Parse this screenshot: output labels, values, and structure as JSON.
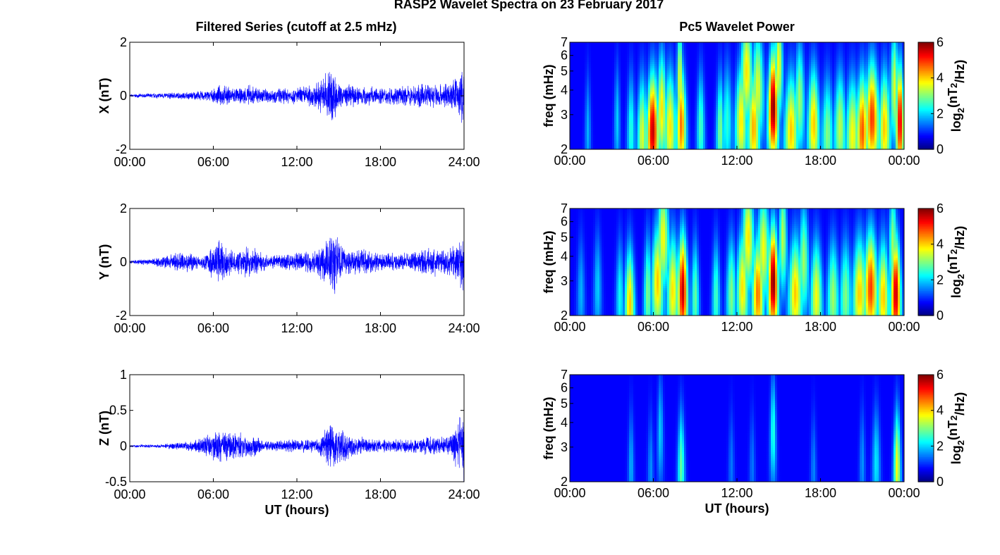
{
  "page": {
    "suptitle": "RASP2 Wavelet Spectra on 23 February 2017",
    "left_title": "Filtered Series (cutoff at 2.5 mHz)",
    "right_title": "Pc5 Wavelet Power"
  },
  "chart_data": [
    {
      "type": "line",
      "title": "Filtered Series (cutoff at 2.5 mHz)",
      "xlabel": "",
      "ylabel": "X (nT)",
      "xlim": [
        0,
        24
      ],
      "ylim": [
        -2,
        2
      ],
      "x_ticks": [
        "00:00",
        "06:00",
        "12:00",
        "18:00",
        "24:00"
      ],
      "y_ticks": [
        "-2",
        "0",
        "2"
      ],
      "color": "#0000ff",
      "series_envelope": {
        "x": [
          0,
          2,
          4,
          6,
          6.5,
          8,
          8.5,
          10,
          12,
          13.5,
          14.5,
          15,
          17,
          18,
          20,
          21,
          23,
          24
        ],
        "amp": [
          0.06,
          0.12,
          0.15,
          0.25,
          0.45,
          0.3,
          0.45,
          0.3,
          0.35,
          0.55,
          1.4,
          0.5,
          0.4,
          0.35,
          0.4,
          0.5,
          0.55,
          1.2
        ]
      }
    },
    {
      "type": "line",
      "xlabel": "",
      "ylabel": "Y (nT)",
      "xlim": [
        0,
        24
      ],
      "ylim": [
        -2,
        2
      ],
      "x_ticks": [
        "00:00",
        "06:00",
        "12:00",
        "18:00",
        "24:00"
      ],
      "y_ticks": [
        "-2",
        "0",
        "2"
      ],
      "color": "#0000ff",
      "series_envelope": {
        "x": [
          0,
          2,
          4.2,
          5,
          6.6,
          7.5,
          8.4,
          10,
          12,
          13.5,
          14.6,
          15.5,
          17,
          18,
          20,
          22,
          23,
          24
        ],
        "amp": [
          0.06,
          0.2,
          0.5,
          0.2,
          1.0,
          0.35,
          0.7,
          0.25,
          0.4,
          0.55,
          1.5,
          0.5,
          0.5,
          0.35,
          0.4,
          0.6,
          0.6,
          1.5
        ]
      }
    },
    {
      "type": "line",
      "xlabel": "UT (hours)",
      "ylabel": "Z (nT)",
      "xlim": [
        0,
        24
      ],
      "ylim": [
        -0.5,
        1
      ],
      "x_ticks": [
        "00:00",
        "06:00",
        "12:00",
        "18:00",
        "24:00"
      ],
      "y_ticks": [
        "-0.5",
        "0",
        "0.5",
        "1"
      ],
      "color": "#0000ff",
      "series_envelope": {
        "x": [
          0,
          2,
          4.5,
          6.5,
          8.3,
          10,
          12,
          13.5,
          14.6,
          16,
          18,
          20,
          22,
          23,
          24
        ],
        "amp": [
          0.02,
          0.03,
          0.08,
          0.25,
          0.2,
          0.08,
          0.1,
          0.12,
          0.4,
          0.15,
          0.1,
          0.1,
          0.15,
          0.15,
          0.6
        ]
      }
    },
    {
      "type": "heatmap",
      "title": "Pc5 Wavelet Power",
      "xlabel": "",
      "ylabel": "freq (mHz)",
      "xlim": [
        0,
        24
      ],
      "ylim": [
        2,
        7
      ],
      "y_scale": "log",
      "x_ticks": [
        "00:00",
        "06:00",
        "12:00",
        "18:00",
        "00:00"
      ],
      "y_ticks": [
        "2",
        "3",
        "4",
        "5",
        "6",
        "7"
      ],
      "colorbar": {
        "label": "log2(nT2/Hz)",
        "range": [
          0,
          6
        ],
        "ticks": [
          "0",
          "2",
          "4",
          "6"
        ],
        "colormap": "jet"
      },
      "blobs": [
        {
          "t": 1.3,
          "f": 2.5,
          "w": 0.15,
          "p": 1.2
        },
        {
          "t": 3.4,
          "f": 2.8,
          "w": 0.15,
          "p": 1.4
        },
        {
          "t": 4.4,
          "f": 2.5,
          "w": 0.2,
          "p": 2.0
        },
        {
          "t": 5.2,
          "f": 2.4,
          "w": 0.25,
          "p": 3.2
        },
        {
          "t": 5.95,
          "f": 2.5,
          "w": 0.3,
          "p": 5.6
        },
        {
          "t": 6.6,
          "f": 3.2,
          "w": 0.25,
          "p": 3.6
        },
        {
          "t": 7.2,
          "f": 2.6,
          "w": 0.3,
          "p": 3.6
        },
        {
          "t": 8.0,
          "f": 2.7,
          "w": 0.25,
          "p": 4.4
        },
        {
          "t": 7.9,
          "f": 4.5,
          "w": 0.15,
          "p": 3.4
        },
        {
          "t": 9.4,
          "f": 2.6,
          "w": 0.2,
          "p": 2.2
        },
        {
          "t": 10.8,
          "f": 2.5,
          "w": 0.2,
          "p": 2.6
        },
        {
          "t": 11.3,
          "f": 2.8,
          "w": 0.25,
          "p": 2.0
        },
        {
          "t": 12.3,
          "f": 2.8,
          "w": 0.3,
          "p": 3.6
        },
        {
          "t": 12.7,
          "f": 5.0,
          "w": 0.3,
          "p": 3.6
        },
        {
          "t": 13.2,
          "f": 2.6,
          "w": 0.3,
          "p": 4.0
        },
        {
          "t": 13.5,
          "f": 4.2,
          "w": 0.3,
          "p": 3.2
        },
        {
          "t": 14.6,
          "f": 3.3,
          "w": 0.25,
          "p": 6.0
        },
        {
          "t": 15.0,
          "f": 5.5,
          "w": 0.2,
          "p": 3.4
        },
        {
          "t": 15.9,
          "f": 2.5,
          "w": 0.35,
          "p": 3.8
        },
        {
          "t": 16.5,
          "f": 3.6,
          "w": 0.25,
          "p": 2.8
        },
        {
          "t": 17.5,
          "f": 2.7,
          "w": 0.3,
          "p": 3.8
        },
        {
          "t": 18.5,
          "f": 2.4,
          "w": 0.3,
          "p": 2.6
        },
        {
          "t": 19.4,
          "f": 2.6,
          "w": 0.3,
          "p": 3.0
        },
        {
          "t": 20.3,
          "f": 2.4,
          "w": 0.35,
          "p": 3.4
        },
        {
          "t": 21.0,
          "f": 2.5,
          "w": 0.3,
          "p": 4.6
        },
        {
          "t": 21.7,
          "f": 2.9,
          "w": 0.35,
          "p": 4.8
        },
        {
          "t": 22.6,
          "f": 2.6,
          "w": 0.3,
          "p": 3.8
        },
        {
          "t": 23.3,
          "f": 4.2,
          "w": 0.2,
          "p": 3.2
        },
        {
          "t": 23.7,
          "f": 2.8,
          "w": 0.2,
          "p": 5.4
        }
      ]
    },
    {
      "type": "heatmap",
      "xlabel": "",
      "ylabel": "freq (mHz)",
      "xlim": [
        0,
        24
      ],
      "ylim": [
        2,
        7
      ],
      "y_scale": "log",
      "x_ticks": [
        "00:00",
        "06:00",
        "12:00",
        "18:00",
        "00:00"
      ],
      "y_ticks": [
        "2",
        "3",
        "4",
        "5",
        "6",
        "7"
      ],
      "colorbar": {
        "label": "log2(nT2/Hz)",
        "range": [
          0,
          6
        ],
        "ticks": [
          "0",
          "2",
          "4",
          "6"
        ],
        "colormap": "jet"
      },
      "blobs": [
        {
          "t": 0.8,
          "f": 2.6,
          "w": 0.2,
          "p": 1.2
        },
        {
          "t": 2.0,
          "f": 2.8,
          "w": 0.2,
          "p": 1.4
        },
        {
          "t": 3.6,
          "f": 2.5,
          "w": 0.2,
          "p": 1.8
        },
        {
          "t": 4.3,
          "f": 2.3,
          "w": 0.25,
          "p": 3.8
        },
        {
          "t": 5.6,
          "f": 2.6,
          "w": 0.2,
          "p": 2.6
        },
        {
          "t": 6.3,
          "f": 3.0,
          "w": 0.3,
          "p": 3.8
        },
        {
          "t": 6.7,
          "f": 5.0,
          "w": 0.3,
          "p": 3.4
        },
        {
          "t": 7.4,
          "f": 2.7,
          "w": 0.3,
          "p": 3.6
        },
        {
          "t": 8.1,
          "f": 2.7,
          "w": 0.25,
          "p": 5.6
        },
        {
          "t": 9.0,
          "f": 2.5,
          "w": 0.2,
          "p": 2.4
        },
        {
          "t": 10.5,
          "f": 2.5,
          "w": 0.2,
          "p": 2.2
        },
        {
          "t": 11.6,
          "f": 2.6,
          "w": 0.25,
          "p": 2.6
        },
        {
          "t": 12.4,
          "f": 2.8,
          "w": 0.3,
          "p": 3.6
        },
        {
          "t": 12.8,
          "f": 5.0,
          "w": 0.3,
          "p": 3.6
        },
        {
          "t": 13.5,
          "f": 2.6,
          "w": 0.3,
          "p": 4.4
        },
        {
          "t": 13.9,
          "f": 4.4,
          "w": 0.3,
          "p": 3.4
        },
        {
          "t": 14.6,
          "f": 3.0,
          "w": 0.25,
          "p": 6.0
        },
        {
          "t": 15.3,
          "f": 5.0,
          "w": 0.2,
          "p": 3.0
        },
        {
          "t": 16.2,
          "f": 2.6,
          "w": 0.35,
          "p": 3.8
        },
        {
          "t": 16.8,
          "f": 3.8,
          "w": 0.25,
          "p": 2.8
        },
        {
          "t": 17.7,
          "f": 2.5,
          "w": 0.3,
          "p": 3.4
        },
        {
          "t": 18.9,
          "f": 2.5,
          "w": 0.3,
          "p": 2.8
        },
        {
          "t": 19.8,
          "f": 2.5,
          "w": 0.3,
          "p": 2.6
        },
        {
          "t": 20.8,
          "f": 2.6,
          "w": 0.35,
          "p": 3.8
        },
        {
          "t": 21.6,
          "f": 2.8,
          "w": 0.35,
          "p": 4.8
        },
        {
          "t": 22.5,
          "f": 2.5,
          "w": 0.3,
          "p": 3.8
        },
        {
          "t": 23.4,
          "f": 2.6,
          "w": 0.25,
          "p": 5.6
        },
        {
          "t": 23.2,
          "f": 4.6,
          "w": 0.2,
          "p": 2.8
        }
      ]
    },
    {
      "type": "heatmap",
      "xlabel": "UT (hours)",
      "ylabel": "freq (mHz)",
      "xlim": [
        0,
        24
      ],
      "ylim": [
        2,
        7
      ],
      "y_scale": "log",
      "x_ticks": [
        "00:00",
        "06:00",
        "12:00",
        "18:00",
        "00:00"
      ],
      "y_ticks": [
        "2",
        "3",
        "4",
        "5",
        "6",
        "7"
      ],
      "colorbar": {
        "label": "log2(nT2/Hz)",
        "range": [
          0,
          6
        ],
        "ticks": [
          "0",
          "2",
          "4",
          "6"
        ],
        "colormap": "jet"
      },
      "blobs": [
        {
          "t": 4.4,
          "f": 2.4,
          "w": 0.15,
          "p": 1.2
        },
        {
          "t": 5.8,
          "f": 2.3,
          "w": 0.15,
          "p": 1.0
        },
        {
          "t": 6.5,
          "f": 3.6,
          "w": 0.15,
          "p": 1.4
        },
        {
          "t": 8.0,
          "f": 2.4,
          "w": 0.18,
          "p": 2.4
        },
        {
          "t": 11.6,
          "f": 2.4,
          "w": 0.15,
          "p": 0.8
        },
        {
          "t": 13.1,
          "f": 2.4,
          "w": 0.15,
          "p": 0.8
        },
        {
          "t": 14.6,
          "f": 3.6,
          "w": 0.15,
          "p": 2.0
        },
        {
          "t": 17.5,
          "f": 2.3,
          "w": 0.15,
          "p": 0.9
        },
        {
          "t": 21.0,
          "f": 2.5,
          "w": 0.15,
          "p": 1.0
        },
        {
          "t": 22.0,
          "f": 2.5,
          "w": 0.2,
          "p": 1.6
        },
        {
          "t": 23.5,
          "f": 2.4,
          "w": 0.18,
          "p": 3.4
        }
      ]
    }
  ]
}
